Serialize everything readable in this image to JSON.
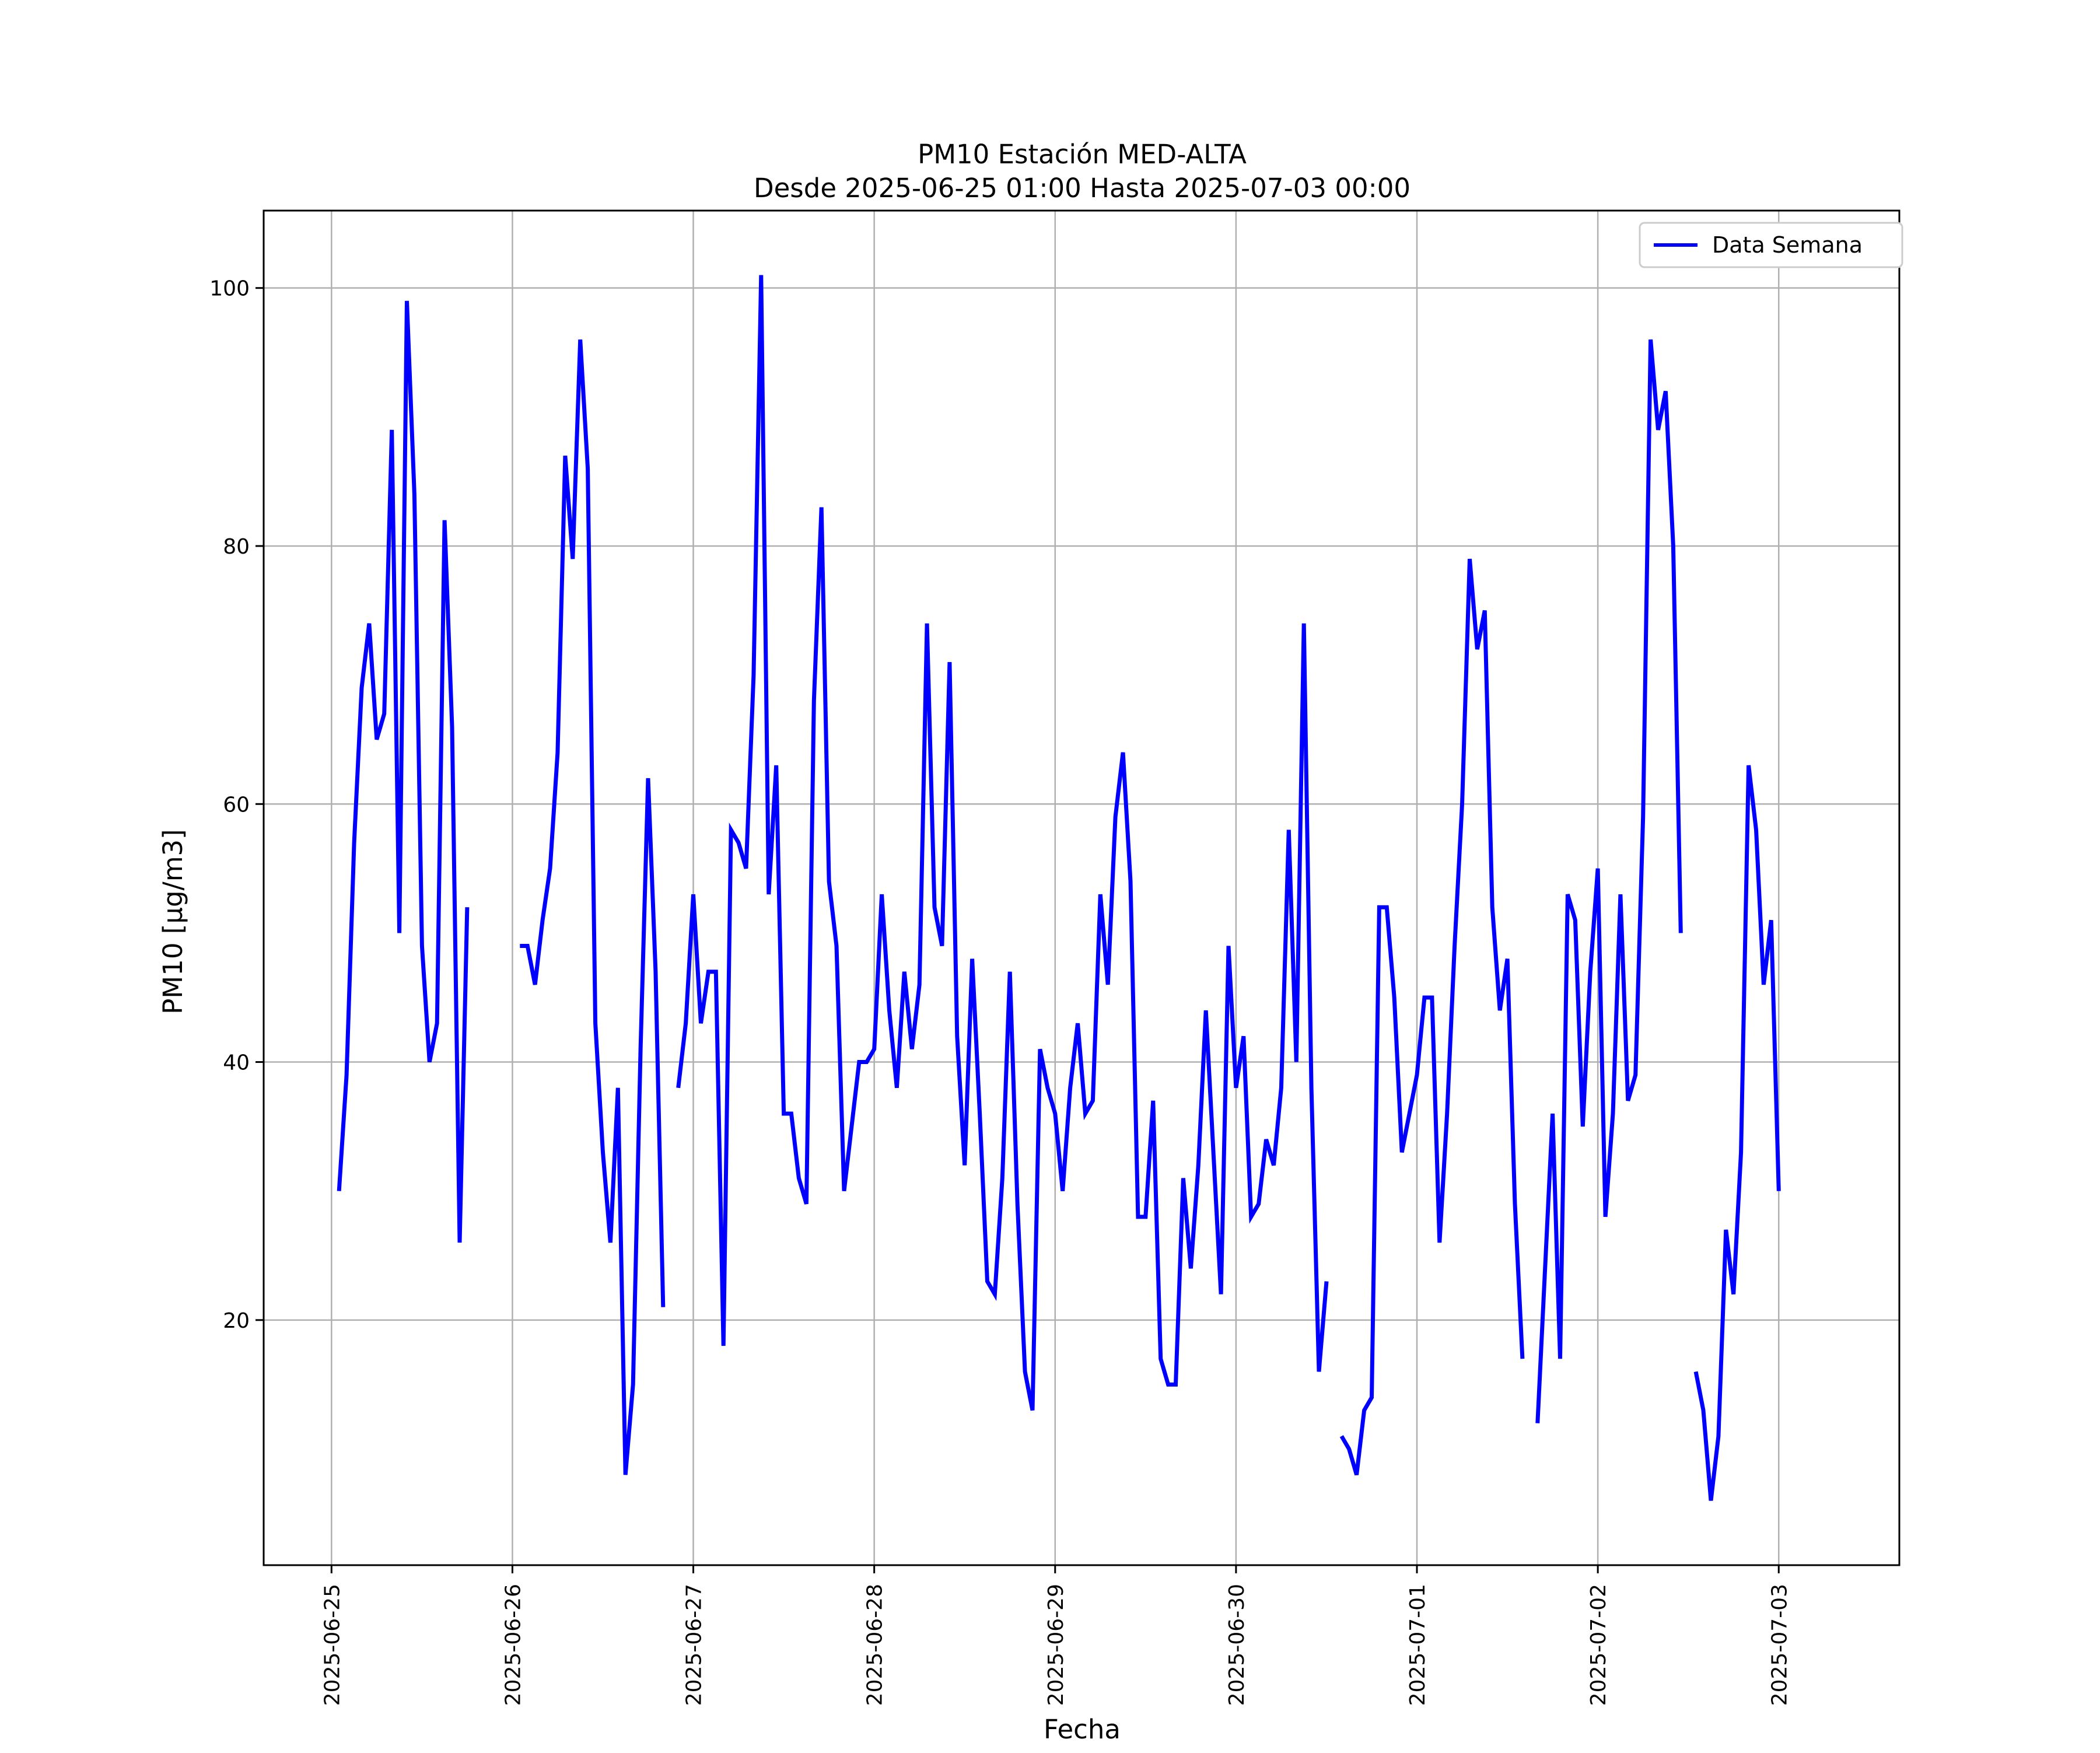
{
  "chart_data": {
    "type": "line",
    "title": "PM10 Estación MED-ALTA",
    "subtitle": "Desde 2025-06-25 01:00 Hasta 2025-07-03 00:00",
    "xlabel": "Fecha",
    "ylabel": "PM10 [μg/m3]",
    "x_ticks": [
      "2025-06-25",
      "2025-06-26",
      "2025-06-27",
      "2025-06-28",
      "2025-06-29",
      "2025-06-30",
      "2025-07-01",
      "2025-07-02",
      "2025-07-03"
    ],
    "y_ticks": [
      "20",
      "40",
      "60",
      "80",
      "100"
    ],
    "xlim": [
      "2025-06-24 15:00",
      "2025-07-03 16:00"
    ],
    "ylim": [
      1,
      106
    ],
    "grid": true,
    "legend_position": "upper right",
    "series_color": "#0000ff",
    "series": [
      {
        "name": "Data Semana",
        "segments": [
          [
            [
              "2025-06-25 01:00",
              30
            ],
            [
              "2025-06-25 02:00",
              39
            ],
            [
              "2025-06-25 03:00",
              57
            ],
            [
              "2025-06-25 04:00",
              69
            ],
            [
              "2025-06-25 05:00",
              74
            ],
            [
              "2025-06-25 06:00",
              65
            ],
            [
              "2025-06-25 07:00",
              67
            ],
            [
              "2025-06-25 08:00",
              89
            ],
            [
              "2025-06-25 09:00",
              50
            ],
            [
              "2025-06-25 10:00",
              99
            ],
            [
              "2025-06-25 11:00",
              84
            ],
            [
              "2025-06-25 12:00",
              49
            ],
            [
              "2025-06-25 13:00",
              40
            ],
            [
              "2025-06-25 14:00",
              43
            ],
            [
              "2025-06-25 15:00",
              82
            ],
            [
              "2025-06-25 16:00",
              66
            ],
            [
              "2025-06-25 17:00",
              26
            ],
            [
              "2025-06-25 18:00",
              52
            ]
          ],
          [
            [
              "2025-06-26 01:00",
              49
            ],
            [
              "2025-06-26 02:00",
              49
            ],
            [
              "2025-06-26 03:00",
              46
            ],
            [
              "2025-06-26 04:00",
              51
            ],
            [
              "2025-06-26 05:00",
              55
            ],
            [
              "2025-06-26 06:00",
              64
            ],
            [
              "2025-06-26 07:00",
              87
            ],
            [
              "2025-06-26 08:00",
              79
            ],
            [
              "2025-06-26 09:00",
              96
            ],
            [
              "2025-06-26 10:00",
              86
            ],
            [
              "2025-06-26 11:00",
              43
            ],
            [
              "2025-06-26 12:00",
              33
            ],
            [
              "2025-06-26 13:00",
              26
            ],
            [
              "2025-06-26 14:00",
              38
            ],
            [
              "2025-06-26 15:00",
              8
            ],
            [
              "2025-06-26 16:00",
              15
            ],
            [
              "2025-06-26 17:00",
              41
            ],
            [
              "2025-06-26 18:00",
              62
            ],
            [
              "2025-06-26 19:00",
              47
            ],
            [
              "2025-06-26 20:00",
              21
            ]
          ],
          [
            [
              "2025-06-26 22:00",
              38
            ],
            [
              "2025-06-26 23:00",
              43
            ],
            [
              "2025-06-27 00:00",
              53
            ],
            [
              "2025-06-27 01:00",
              43
            ],
            [
              "2025-06-27 02:00",
              47
            ],
            [
              "2025-06-27 03:00",
              47
            ],
            [
              "2025-06-27 04:00",
              18
            ],
            [
              "2025-06-27 05:00",
              58
            ],
            [
              "2025-06-27 06:00",
              57
            ],
            [
              "2025-06-27 07:00",
              55
            ],
            [
              "2025-06-27 08:00",
              70
            ],
            [
              "2025-06-27 09:00",
              101
            ],
            [
              "2025-06-27 10:00",
              53
            ],
            [
              "2025-06-27 11:00",
              63
            ],
            [
              "2025-06-27 12:00",
              36
            ],
            [
              "2025-06-27 13:00",
              36
            ],
            [
              "2025-06-27 14:00",
              31
            ],
            [
              "2025-06-27 15:00",
              29
            ],
            [
              "2025-06-27 16:00",
              68
            ],
            [
              "2025-06-27 17:00",
              83
            ],
            [
              "2025-06-27 18:00",
              54
            ],
            [
              "2025-06-27 19:00",
              49
            ],
            [
              "2025-06-27 20:00",
              30
            ],
            [
              "2025-06-27 21:00",
              35
            ],
            [
              "2025-06-27 22:00",
              40
            ],
            [
              "2025-06-27 23:00",
              40
            ],
            [
              "2025-06-28 00:00",
              41
            ],
            [
              "2025-06-28 01:00",
              53
            ],
            [
              "2025-06-28 02:00",
              44
            ],
            [
              "2025-06-28 03:00",
              38
            ],
            [
              "2025-06-28 04:00",
              47
            ],
            [
              "2025-06-28 05:00",
              41
            ],
            [
              "2025-06-28 06:00",
              46
            ],
            [
              "2025-06-28 07:00",
              74
            ],
            [
              "2025-06-28 08:00",
              52
            ],
            [
              "2025-06-28 09:00",
              49
            ],
            [
              "2025-06-28 10:00",
              71
            ],
            [
              "2025-06-28 11:00",
              42
            ],
            [
              "2025-06-28 12:00",
              32
            ],
            [
              "2025-06-28 13:00",
              48
            ],
            [
              "2025-06-28 14:00",
              36
            ],
            [
              "2025-06-28 15:00",
              23
            ],
            [
              "2025-06-28 16:00",
              22
            ],
            [
              "2025-06-28 17:00",
              31
            ],
            [
              "2025-06-28 18:00",
              47
            ],
            [
              "2025-06-28 19:00",
              29
            ],
            [
              "2025-06-28 20:00",
              16
            ],
            [
              "2025-06-28 21:00",
              13
            ],
            [
              "2025-06-28 22:00",
              41
            ],
            [
              "2025-06-28 23:00",
              38
            ],
            [
              "2025-06-29 00:00",
              36
            ],
            [
              "2025-06-29 01:00",
              30
            ],
            [
              "2025-06-29 02:00",
              38
            ],
            [
              "2025-06-29 03:00",
              43
            ],
            [
              "2025-06-29 04:00",
              36
            ],
            [
              "2025-06-29 05:00",
              37
            ],
            [
              "2025-06-29 06:00",
              53
            ],
            [
              "2025-06-29 07:00",
              46
            ],
            [
              "2025-06-29 08:00",
              59
            ],
            [
              "2025-06-29 09:00",
              64
            ],
            [
              "2025-06-29 10:00",
              54
            ],
            [
              "2025-06-29 11:00",
              28
            ],
            [
              "2025-06-29 12:00",
              28
            ],
            [
              "2025-06-29 13:00",
              37
            ],
            [
              "2025-06-29 14:00",
              17
            ],
            [
              "2025-06-29 15:00",
              15
            ],
            [
              "2025-06-29 16:00",
              15
            ],
            [
              "2025-06-29 17:00",
              31
            ],
            [
              "2025-06-29 18:00",
              24
            ],
            [
              "2025-06-29 19:00",
              32
            ],
            [
              "2025-06-29 20:00",
              44
            ],
            [
              "2025-06-29 21:00",
              33
            ],
            [
              "2025-06-29 22:00",
              22
            ],
            [
              "2025-06-29 23:00",
              49
            ],
            [
              "2025-06-30 00:00",
              38
            ],
            [
              "2025-06-30 01:00",
              42
            ],
            [
              "2025-06-30 02:00",
              28
            ],
            [
              "2025-06-30 03:00",
              29
            ],
            [
              "2025-06-30 04:00",
              34
            ],
            [
              "2025-06-30 05:00",
              32
            ],
            [
              "2025-06-30 06:00",
              38
            ],
            [
              "2025-06-30 07:00",
              58
            ],
            [
              "2025-06-30 08:00",
              40
            ],
            [
              "2025-06-30 09:00",
              74
            ],
            [
              "2025-06-30 10:00",
              38
            ],
            [
              "2025-06-30 11:00",
              16
            ],
            [
              "2025-06-30 12:00",
              23
            ]
          ],
          [
            [
              "2025-06-30 14:00",
              11
            ],
            [
              "2025-06-30 15:00",
              10
            ],
            [
              "2025-06-30 16:00",
              8
            ],
            [
              "2025-06-30 17:00",
              13
            ],
            [
              "2025-06-30 18:00",
              14
            ],
            [
              "2025-06-30 19:00",
              52
            ],
            [
              "2025-06-30 20:00",
              52
            ],
            [
              "2025-06-30 21:00",
              45
            ],
            [
              "2025-06-30 22:00",
              33
            ],
            [
              "2025-06-30 23:00",
              36
            ],
            [
              "2025-07-01 00:00",
              39
            ],
            [
              "2025-07-01 01:00",
              45
            ],
            [
              "2025-07-01 02:00",
              45
            ],
            [
              "2025-07-01 03:00",
              26
            ],
            [
              "2025-07-01 04:00",
              36
            ],
            [
              "2025-07-01 05:00",
              49
            ],
            [
              "2025-07-01 06:00",
              60
            ],
            [
              "2025-07-01 07:00",
              79
            ],
            [
              "2025-07-01 08:00",
              72
            ],
            [
              "2025-07-01 09:00",
              75
            ],
            [
              "2025-07-01 10:00",
              52
            ],
            [
              "2025-07-01 11:00",
              44
            ],
            [
              "2025-07-01 12:00",
              48
            ],
            [
              "2025-07-01 13:00",
              29
            ],
            [
              "2025-07-01 14:00",
              17
            ]
          ],
          [
            [
              "2025-07-01 16:00",
              12
            ],
            [
              "2025-07-01 17:00",
              24
            ],
            [
              "2025-07-01 18:00",
              36
            ],
            [
              "2025-07-01 19:00",
              17
            ],
            [
              "2025-07-01 20:00",
              53
            ],
            [
              "2025-07-01 21:00",
              51
            ],
            [
              "2025-07-01 22:00",
              35
            ],
            [
              "2025-07-01 23:00",
              47
            ],
            [
              "2025-07-02 00:00",
              55
            ],
            [
              "2025-07-02 01:00",
              28
            ],
            [
              "2025-07-02 02:00",
              36
            ],
            [
              "2025-07-02 03:00",
              53
            ],
            [
              "2025-07-02 04:00",
              37
            ],
            [
              "2025-07-02 05:00",
              39
            ],
            [
              "2025-07-02 06:00",
              59
            ],
            [
              "2025-07-02 07:00",
              96
            ],
            [
              "2025-07-02 08:00",
              89
            ],
            [
              "2025-07-02 09:00",
              92
            ],
            [
              "2025-07-02 10:00",
              80
            ],
            [
              "2025-07-02 11:00",
              50
            ]
          ],
          [
            [
              "2025-07-02 13:00",
              16
            ],
            [
              "2025-07-02 14:00",
              13
            ],
            [
              "2025-07-02 15:00",
              6
            ],
            [
              "2025-07-02 16:00",
              11
            ],
            [
              "2025-07-02 17:00",
              27
            ],
            [
              "2025-07-02 18:00",
              22
            ],
            [
              "2025-07-02 19:00",
              33
            ],
            [
              "2025-07-02 20:00",
              63
            ],
            [
              "2025-07-02 21:00",
              58
            ],
            [
              "2025-07-02 22:00",
              46
            ],
            [
              "2025-07-02 23:00",
              51
            ],
            [
              "2025-07-03 00:00",
              30
            ]
          ]
        ]
      }
    ]
  }
}
